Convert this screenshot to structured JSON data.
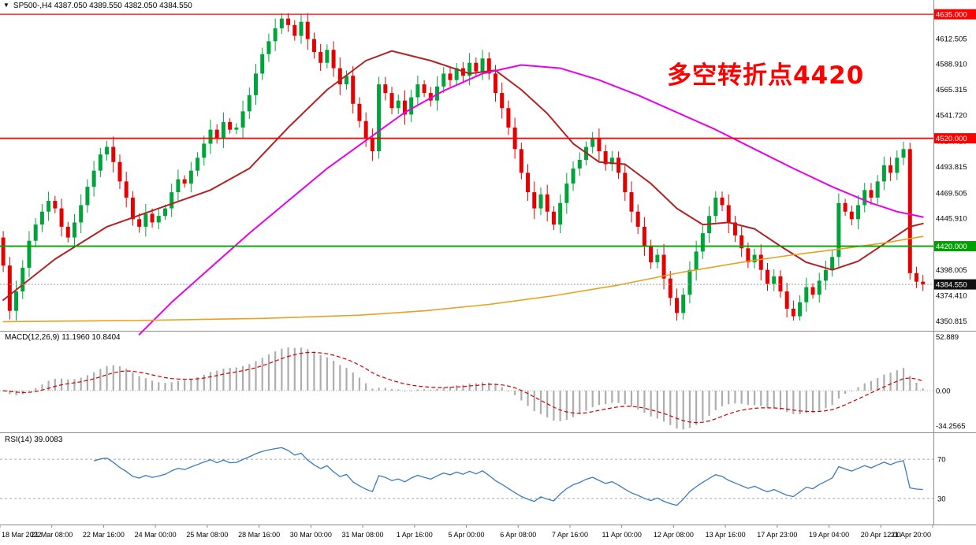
{
  "header": {
    "symbol_info": "SP500-,H4 4387.050 4389.550 4382.050 4384.550"
  },
  "annotation": {
    "text": "多空转折点4420",
    "color": "#FF0000"
  },
  "colors": {
    "background": "#FFFFFF",
    "bull": "#00A43B",
    "bear": "#E60000",
    "wick_bull": "#00A43B",
    "wick_bear": "#E60000",
    "ma_red": "#B22222",
    "ma_magenta": "#E800E8",
    "ma_orange": "#E8A020",
    "hline_red": "#FF0000",
    "hline_green": "#00A000",
    "current_price_line": "#A0A0A0",
    "current_price_badge": "#111111",
    "badge_text": "#FFFFFF",
    "macd_hist": "#ADADAD",
    "macd_signal": "#CC0000",
    "zero_line": "#B0B0B0",
    "rsi_line": "#3A7ABD",
    "rsi_level": "#A8A8A8",
    "axis_text": "#000000",
    "separator": "#8C8C8C"
  },
  "macd_pane": {
    "label": "MACD(12,26,9) 11.1960 10.8404"
  },
  "rsi_pane": {
    "label": "RSI(14) 39.0083"
  },
  "chart_data": {
    "type": "candlestick",
    "symbol": "SP500-",
    "timeframe": "H4",
    "main_scale": [
      4343,
      4638
    ],
    "y_ticks": [
      4612.505,
      4588.91,
      4565.315,
      4541.72,
      4517.41,
      4493.815,
      4469.505,
      4445.91,
      4398.005,
      4374.41,
      4350.815
    ],
    "hlines": [
      {
        "name": "hline-4635",
        "value": 4635.0,
        "label": "4635.000",
        "color": "#FF0000",
        "width": 1.2
      },
      {
        "name": "hline-4520",
        "value": 4520.0,
        "label": "4520.000",
        "color": "#FF0000",
        "width": 1.8
      },
      {
        "name": "hline-4420",
        "value": 4420.0,
        "label": "4420.000",
        "color": "#00A000",
        "width": 1.8
      }
    ],
    "current_price": {
      "value": 4384.55,
      "label": "4384.550"
    },
    "first_open": 4428,
    "closes": [
      4402,
      4360,
      4378,
      4400,
      4425,
      4440,
      4452,
      4462,
      4455,
      4438,
      4428,
      4442,
      4458,
      4475,
      4490,
      4505,
      4512,
      4498,
      4480,
      4465,
      4445,
      4438,
      4450,
      4442,
      4448,
      4455,
      4470,
      4482,
      4478,
      4490,
      4502,
      4515,
      4528,
      4520,
      4535,
      4528,
      4530,
      4545,
      4560,
      4580,
      4598,
      4610,
      4622,
      4631,
      4625,
      4615,
      4628,
      4612,
      4600,
      4590,
      4602,
      4585,
      4570,
      4578,
      4552,
      4536,
      4520,
      4508,
      4570,
      4562,
      4548,
      4555,
      4542,
      4558,
      4570,
      4562,
      4555,
      4568,
      4580,
      4574,
      4585,
      4578,
      4590,
      4582,
      4594,
      4580,
      4562,
      4548,
      4530,
      4510,
      4488,
      4470,
      4455,
      4468,
      4452,
      4440,
      4460,
      4478,
      4492,
      4500,
      4512,
      4520,
      4508,
      4496,
      4502,
      4488,
      4470,
      4452,
      4438,
      4420,
      4405,
      4412,
      4390,
      4372,
      4358,
      4375,
      4398,
      4415,
      4432,
      4448,
      4465,
      4458,
      4442,
      4430,
      4418,
      4405,
      4412,
      4398,
      4385,
      4392,
      4378,
      4362,
      4355,
      4368,
      4382,
      4375,
      4388,
      4398,
      4410,
      4460,
      4452,
      4445,
      4458,
      4472,
      4465,
      4480,
      4495,
      4488,
      4502,
      4510,
      4395,
      4387.05,
      4384.55
    ],
    "ma_lines": [
      {
        "name": "ma-red-line",
        "color": "#B22222",
        "width": 2,
        "points": [
          [
            0,
            4370
          ],
          [
            8,
            4408
          ],
          [
            16,
            4438
          ],
          [
            24,
            4455
          ],
          [
            32,
            4472
          ],
          [
            38,
            4492
          ],
          [
            44,
            4530
          ],
          [
            50,
            4565
          ],
          [
            56,
            4592
          ],
          [
            60,
            4601
          ],
          [
            66,
            4592
          ],
          [
            72,
            4580
          ],
          [
            76,
            4583
          ],
          [
            80,
            4565
          ],
          [
            84,
            4543
          ],
          [
            88,
            4515
          ],
          [
            92,
            4498
          ],
          [
            96,
            4496
          ],
          [
            100,
            4478
          ],
          [
            104,
            4455
          ],
          [
            108,
            4440
          ],
          [
            112,
            4442
          ],
          [
            116,
            4436
          ],
          [
            120,
            4420
          ],
          [
            124,
            4405
          ],
          [
            128,
            4398
          ],
          [
            132,
            4406
          ],
          [
            136,
            4422
          ],
          [
            140,
            4438
          ],
          [
            142,
            4441
          ]
        ]
      },
      {
        "name": "ma-magenta-line",
        "color": "#E800E8",
        "width": 2,
        "points": [
          [
            21,
            4338
          ],
          [
            26,
            4368
          ],
          [
            32,
            4400
          ],
          [
            38,
            4432
          ],
          [
            44,
            4462
          ],
          [
            50,
            4492
          ],
          [
            56,
            4518
          ],
          [
            62,
            4544
          ],
          [
            68,
            4564
          ],
          [
            74,
            4580
          ],
          [
            80,
            4588
          ],
          [
            86,
            4585
          ],
          [
            92,
            4574
          ],
          [
            98,
            4560
          ],
          [
            104,
            4544
          ],
          [
            110,
            4528
          ],
          [
            116,
            4510
          ],
          [
            122,
            4492
          ],
          [
            128,
            4475
          ],
          [
            134,
            4460
          ],
          [
            138,
            4452
          ],
          [
            142,
            4447
          ]
        ]
      },
      {
        "name": "ma-orange-line",
        "color": "#E8A020",
        "width": 1.6,
        "points": [
          [
            0,
            4350
          ],
          [
            20,
            4351
          ],
          [
            40,
            4353
          ],
          [
            55,
            4356
          ],
          [
            65,
            4360
          ],
          [
            75,
            4366
          ],
          [
            85,
            4374
          ],
          [
            95,
            4384
          ],
          [
            105,
            4396
          ],
          [
            115,
            4406
          ],
          [
            122,
            4412
          ],
          [
            130,
            4418
          ],
          [
            136,
            4423
          ],
          [
            142,
            4429
          ]
        ]
      }
    ],
    "macd": {
      "label": "MACD(12,26,9) 11.1960 10.8404",
      "params": [
        12,
        26,
        9
      ],
      "scale_max": 57,
      "scale_min": -38.5,
      "ticks": [
        {
          "value": 52.889,
          "label": "52.889"
        },
        {
          "value": 0,
          "label": "0.00"
        },
        {
          "value": -34.2565,
          "label": "-34.2565"
        }
      ]
    },
    "rsi": {
      "label": "RSI(14) 39.0083",
      "period": 14,
      "current": 39.0083,
      "scale_max": 95,
      "scale_min": 5,
      "levels": [
        {
          "value": 70,
          "label": "70"
        },
        {
          "value": 30,
          "label": "30"
        }
      ]
    },
    "time_axis": {
      "step": 8,
      "labels": [
        "18 Mar 2022",
        "21 Mar 08:00",
        "22 Mar 16:00",
        "24 Mar 00:00",
        "25 Mar 08:00",
        "28 Mar 16:00",
        "30 Mar 00:00",
        "31 Mar 08:00",
        "1 Apr 16:00",
        "5 Apr 00:00",
        "6 Apr 08:00",
        "7 Apr 16:00",
        "11 Apr 00:00",
        "12 Apr 08:00",
        "13 Apr 16:00",
        "17 Apr 23:00",
        "19 Apr 04:00",
        "20 Apr 12:00",
        "21 Apr 20:00"
      ]
    }
  }
}
